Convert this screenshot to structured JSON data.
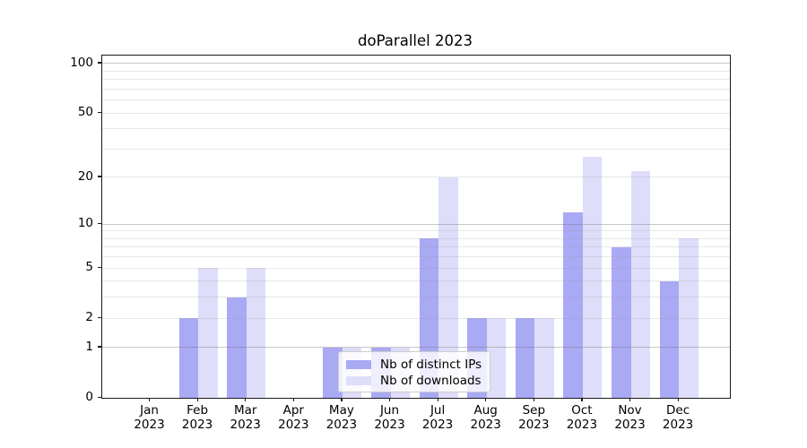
{
  "title": "doParallel 2023",
  "chart_data": {
    "type": "bar",
    "title": "doParallel 2023",
    "months": [
      "Jan",
      "Feb",
      "Mar",
      "Apr",
      "May",
      "Jun",
      "Jul",
      "Aug",
      "Sep",
      "Oct",
      "Nov",
      "Dec"
    ],
    "year": "2023",
    "categories": [
      "Jan 2023",
      "Feb 2023",
      "Mar 2023",
      "Apr 2023",
      "May 2023",
      "Jun 2023",
      "Jul 2023",
      "Aug 2023",
      "Sep 2023",
      "Oct 2023",
      "Nov 2023",
      "Dec 2023"
    ],
    "series": [
      {
        "name": "Nb of distinct IPs",
        "values": [
          0,
          2,
          3,
          0,
          1,
          1,
          8,
          2,
          2,
          12,
          7,
          4
        ],
        "color": "#a9a9f4"
      },
      {
        "name": "Nb of downloads",
        "values": [
          0,
          5,
          5,
          0,
          1,
          1,
          20,
          2,
          2,
          27,
          22,
          8
        ],
        "color": "#dedefa"
      }
    ],
    "y_ticks": [
      0,
      1,
      2,
      5,
      10,
      20,
      50,
      100
    ],
    "y_scale": "log1p",
    "ylim": [
      0,
      111
    ],
    "xlabel": "",
    "ylabel": "",
    "grid": "on",
    "grid_major_values": [
      1,
      10,
      100
    ],
    "grid_minor_values": [
      2,
      3,
      4,
      5,
      6,
      7,
      8,
      9,
      20,
      30,
      40,
      50,
      60,
      70,
      80,
      90
    ],
    "legend_position": "lower center"
  },
  "colors": {
    "background": "#ffffff",
    "bar_ips": "#a9a9f4",
    "bar_downloads": "#dedefa",
    "axis": "#1a1a1a",
    "legend_border": "#cccccc"
  }
}
